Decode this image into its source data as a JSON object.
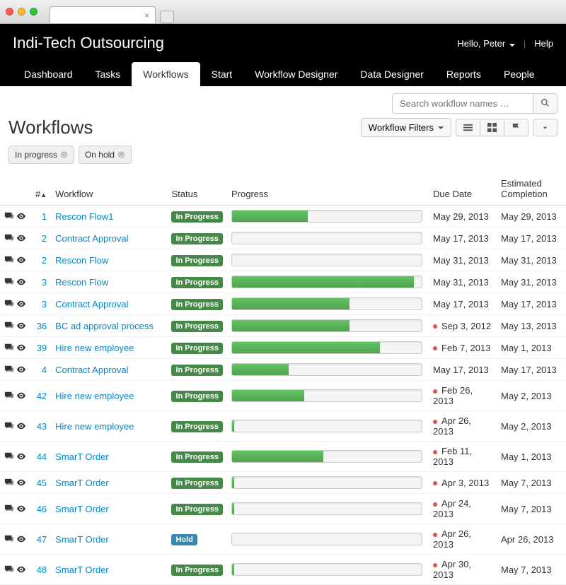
{
  "brand": "Indi-Tech Outsourcing",
  "user": {
    "greeting": "Hello, Peter",
    "help": "Help"
  },
  "nav": [
    "Dashboard",
    "Tasks",
    "Workflows",
    "Start",
    "Workflow Designer",
    "Data Designer",
    "Reports",
    "People"
  ],
  "nav_active_index": 2,
  "search_placeholder": "Search workflow names …",
  "page_title": "Workflows",
  "filters_button": "Workflow Filters",
  "chips": [
    "In progress",
    "On hold"
  ],
  "columns": {
    "num": "#",
    "workflow": "Workflow",
    "status": "Status",
    "progress": "Progress",
    "due": "Due Date",
    "est": "Estimated Completion"
  },
  "status_labels": {
    "in_progress": "In Progress",
    "hold": "Hold"
  },
  "colors": {
    "badge_progress": "#468847",
    "badge_hold": "#3a87ad",
    "progress_fill_top": "#62c462",
    "progress_fill_bot": "#51a351",
    "link": "#0088cc",
    "overdue": "#d9534f"
  },
  "rows": [
    {
      "num": "1",
      "name": "Rescon Flow1",
      "status": "in_progress",
      "progress": 40,
      "due": "May 29, 2013",
      "est": "May 29, 2013",
      "overdue": false
    },
    {
      "num": "2",
      "name": "Contract Approval",
      "status": "in_progress",
      "progress": 0,
      "due": "May 17, 2013",
      "est": "May 17, 2013",
      "overdue": false
    },
    {
      "num": "2",
      "name": "Rescon Flow",
      "status": "in_progress",
      "progress": 0,
      "due": "May 31, 2013",
      "est": "May 31, 2013",
      "overdue": false
    },
    {
      "num": "3",
      "name": "Rescon Flow",
      "status": "in_progress",
      "progress": 96,
      "due": "May 31, 2013",
      "est": "May 31, 2013",
      "overdue": false
    },
    {
      "num": "3",
      "name": "Contract Approval",
      "status": "in_progress",
      "progress": 62,
      "due": "May 17, 2013",
      "est": "May 17, 2013",
      "overdue": false
    },
    {
      "num": "36",
      "name": "BC ad approval process",
      "status": "in_progress",
      "progress": 62,
      "due": "Sep 3, 2012",
      "est": "May 13, 2013",
      "overdue": true
    },
    {
      "num": "39",
      "name": "Hire new employee",
      "status": "in_progress",
      "progress": 78,
      "due": "Feb 7, 2013",
      "est": "May 1, 2013",
      "overdue": true
    },
    {
      "num": "4",
      "name": "Contract Approval",
      "status": "in_progress",
      "progress": 30,
      "due": "May 17, 2013",
      "est": "May 17, 2013",
      "overdue": false
    },
    {
      "num": "42",
      "name": "Hire new employee",
      "status": "in_progress",
      "progress": 38,
      "due": "Feb 26, 2013",
      "est": "May 2, 2013",
      "overdue": true
    },
    {
      "num": "43",
      "name": "Hire new employee",
      "status": "in_progress",
      "progress": 1,
      "due": "Apr 26, 2013",
      "est": "May 2, 2013",
      "overdue": true
    },
    {
      "num": "44",
      "name": "SmarT Order",
      "status": "in_progress",
      "progress": 48,
      "due": "Feb 11, 2013",
      "est": "May 1, 2013",
      "overdue": true
    },
    {
      "num": "45",
      "name": "SmarT Order",
      "status": "in_progress",
      "progress": 1,
      "due": "Apr 3, 2013",
      "est": "May 7, 2013",
      "overdue": true
    },
    {
      "num": "46",
      "name": "SmarT Order",
      "status": "in_progress",
      "progress": 1,
      "due": "Apr 24, 2013",
      "est": "May 7, 2013",
      "overdue": true
    },
    {
      "num": "47",
      "name": "SmarT Order",
      "status": "hold",
      "progress": 0,
      "due": "Apr 26, 2013",
      "est": "Apr 26, 2013",
      "overdue": true
    },
    {
      "num": "48",
      "name": "SmarT Order",
      "status": "in_progress",
      "progress": 1,
      "due": "Apr 30, 2013",
      "est": "May 7, 2013",
      "overdue": true
    }
  ]
}
